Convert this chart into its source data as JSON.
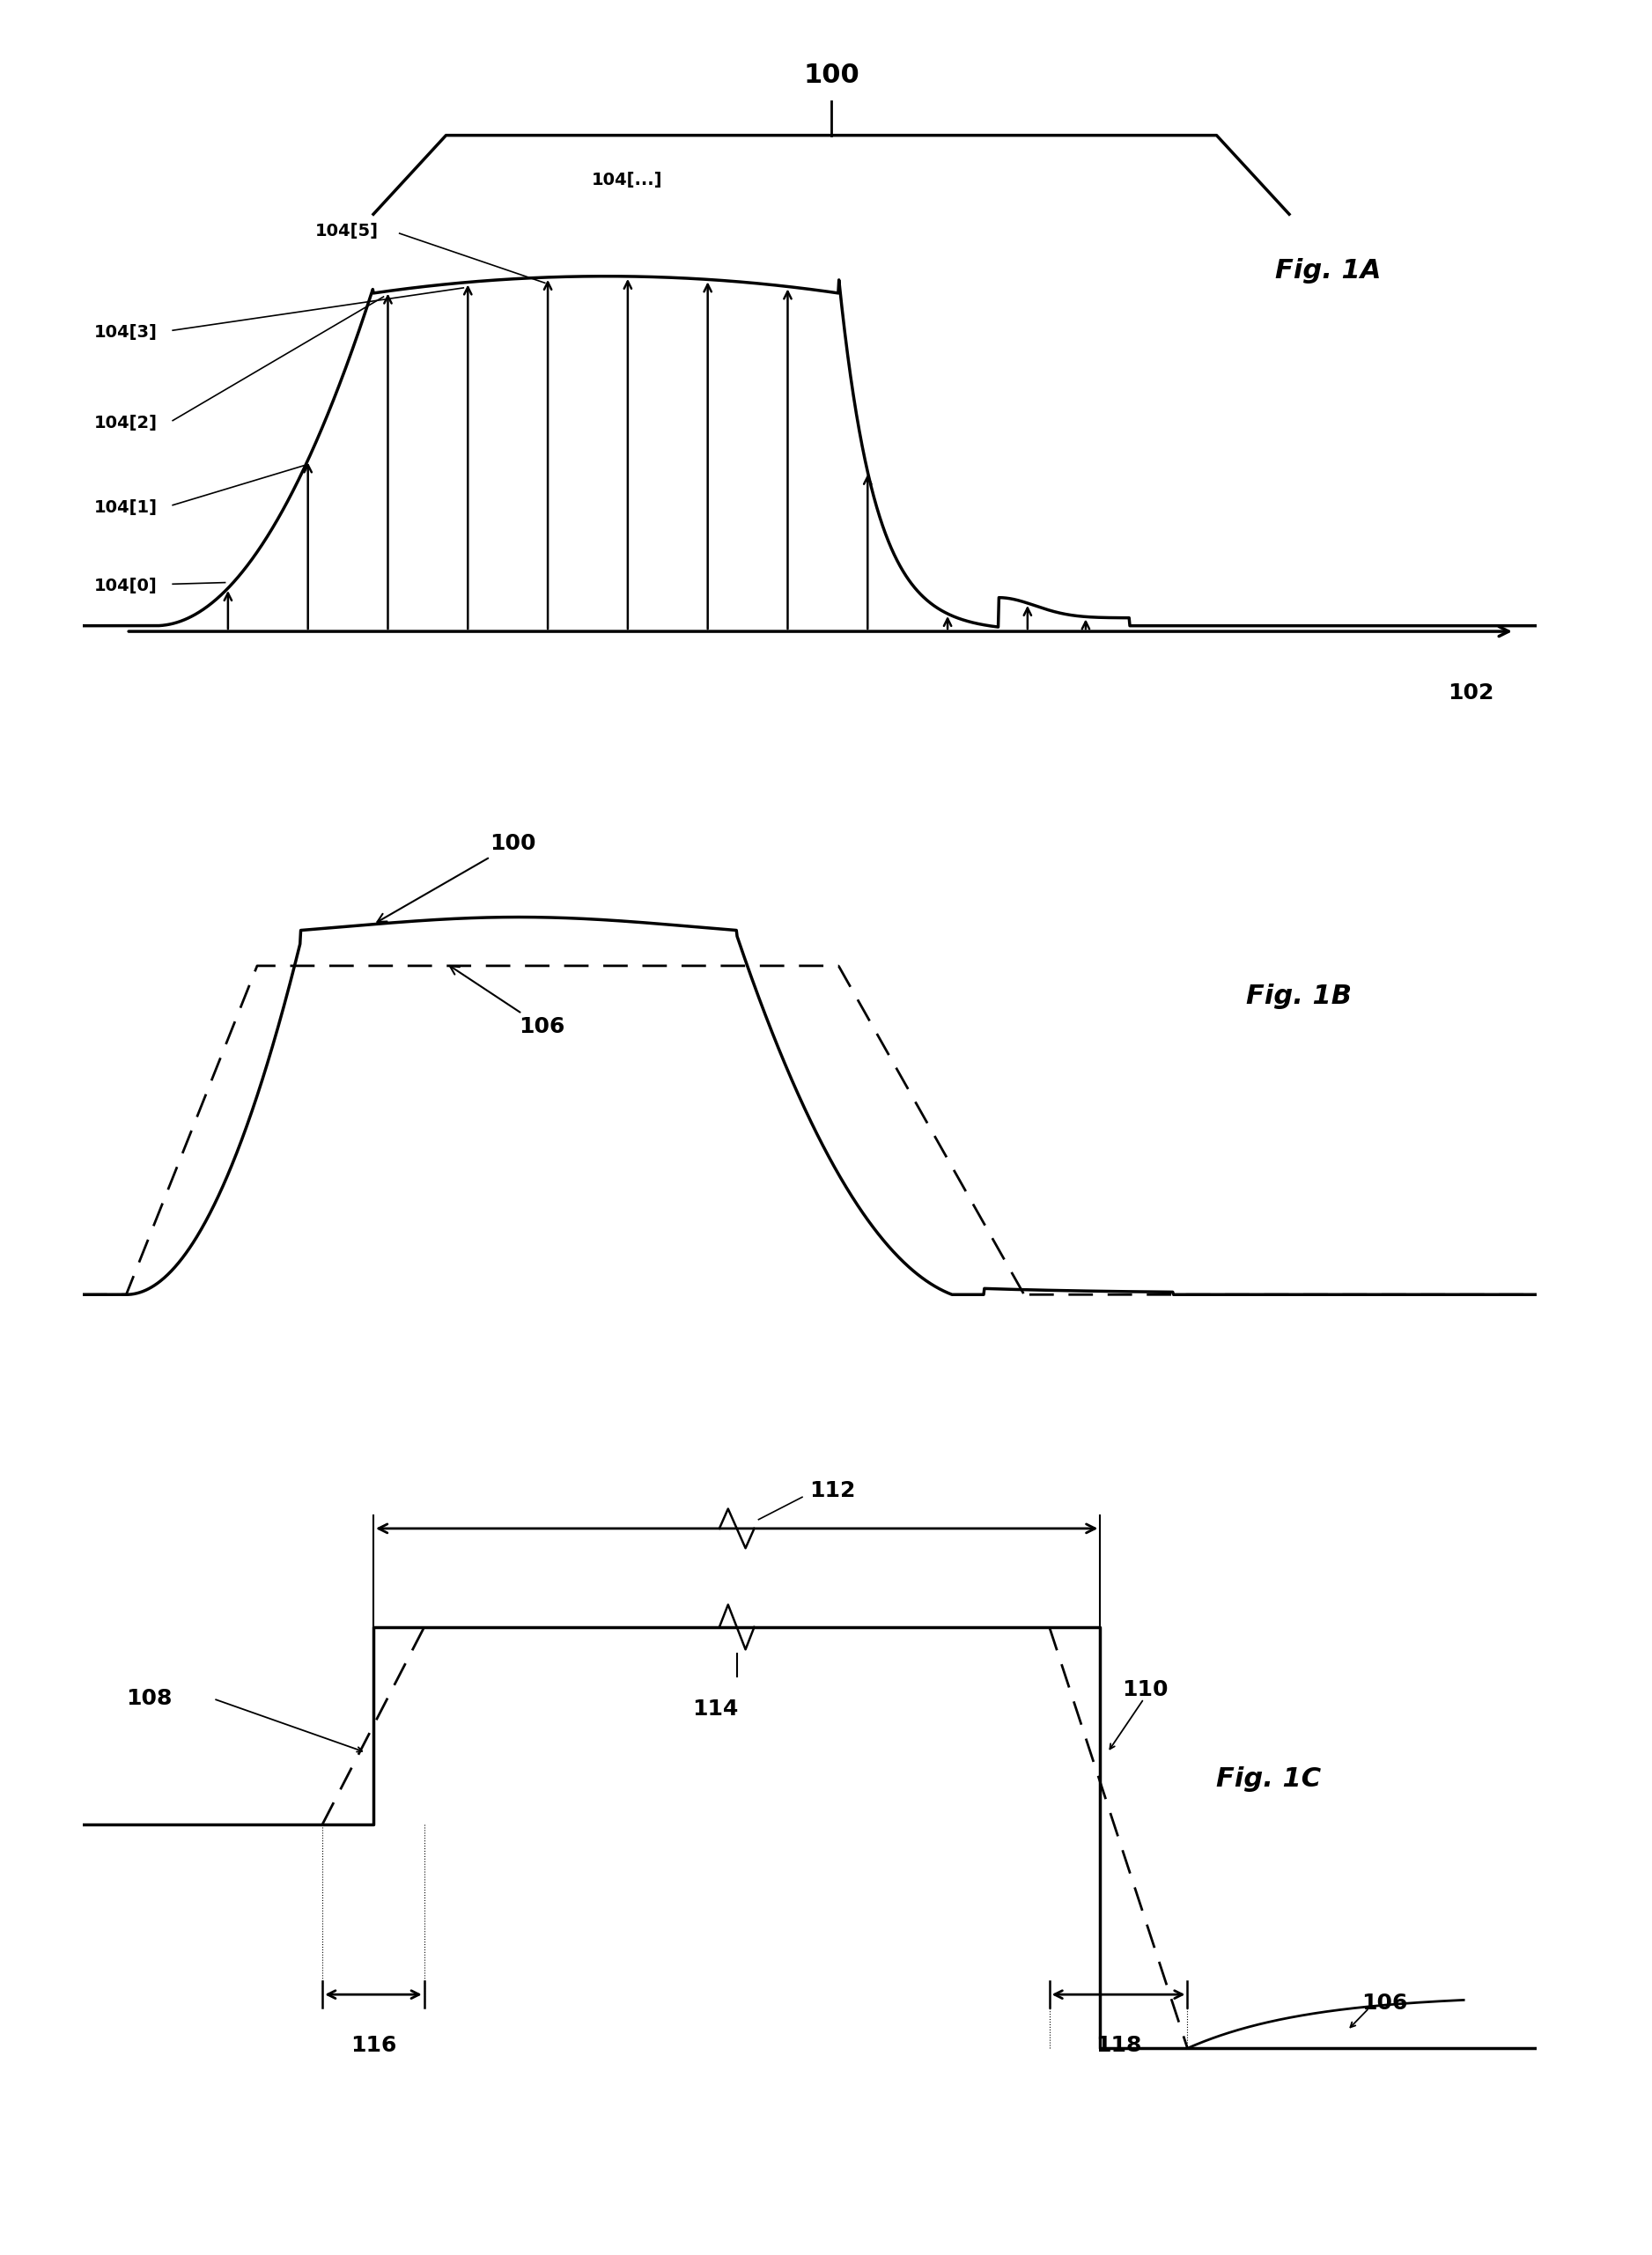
{
  "fig_width": 18.76,
  "fig_height": 25.61,
  "bg_color": "#ffffff",
  "line_color": "#000000",
  "fig1A_label": "Fig. 1A",
  "fig1B_label": "Fig. 1B",
  "fig1C_label": "Fig. 1C",
  "label_100_1A": "100",
  "label_102": "102",
  "labels_104": [
    "104[0]",
    "104[1]",
    "104[2]",
    "104[3]",
    "104[5]",
    "104[...]"
  ],
  "label_100_1B": "100",
  "label_106_1B": "106",
  "label_108": "108",
  "label_110": "110",
  "label_112": "112",
  "label_114": "114",
  "label_116": "116",
  "label_118": "118",
  "label_106_1C": "106"
}
